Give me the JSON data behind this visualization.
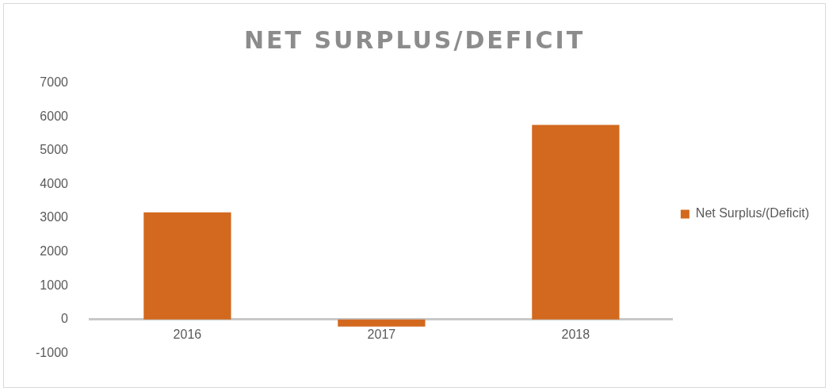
{
  "chart_data": {
    "type": "bar",
    "title": "NET SURPLUS/DEFICIT",
    "categories": [
      "2016",
      "2017",
      "2018"
    ],
    "series": [
      {
        "name": "Net Surplus/(Deficit)",
        "color": "#d2691e",
        "values": [
          3170,
          -210,
          5760
        ]
      }
    ],
    "ylim": [
      -1000,
      7000
    ],
    "yticks": [
      -1000,
      0,
      1000,
      2000,
      3000,
      4000,
      5000,
      6000,
      7000
    ],
    "grid": false,
    "legend": "right"
  }
}
